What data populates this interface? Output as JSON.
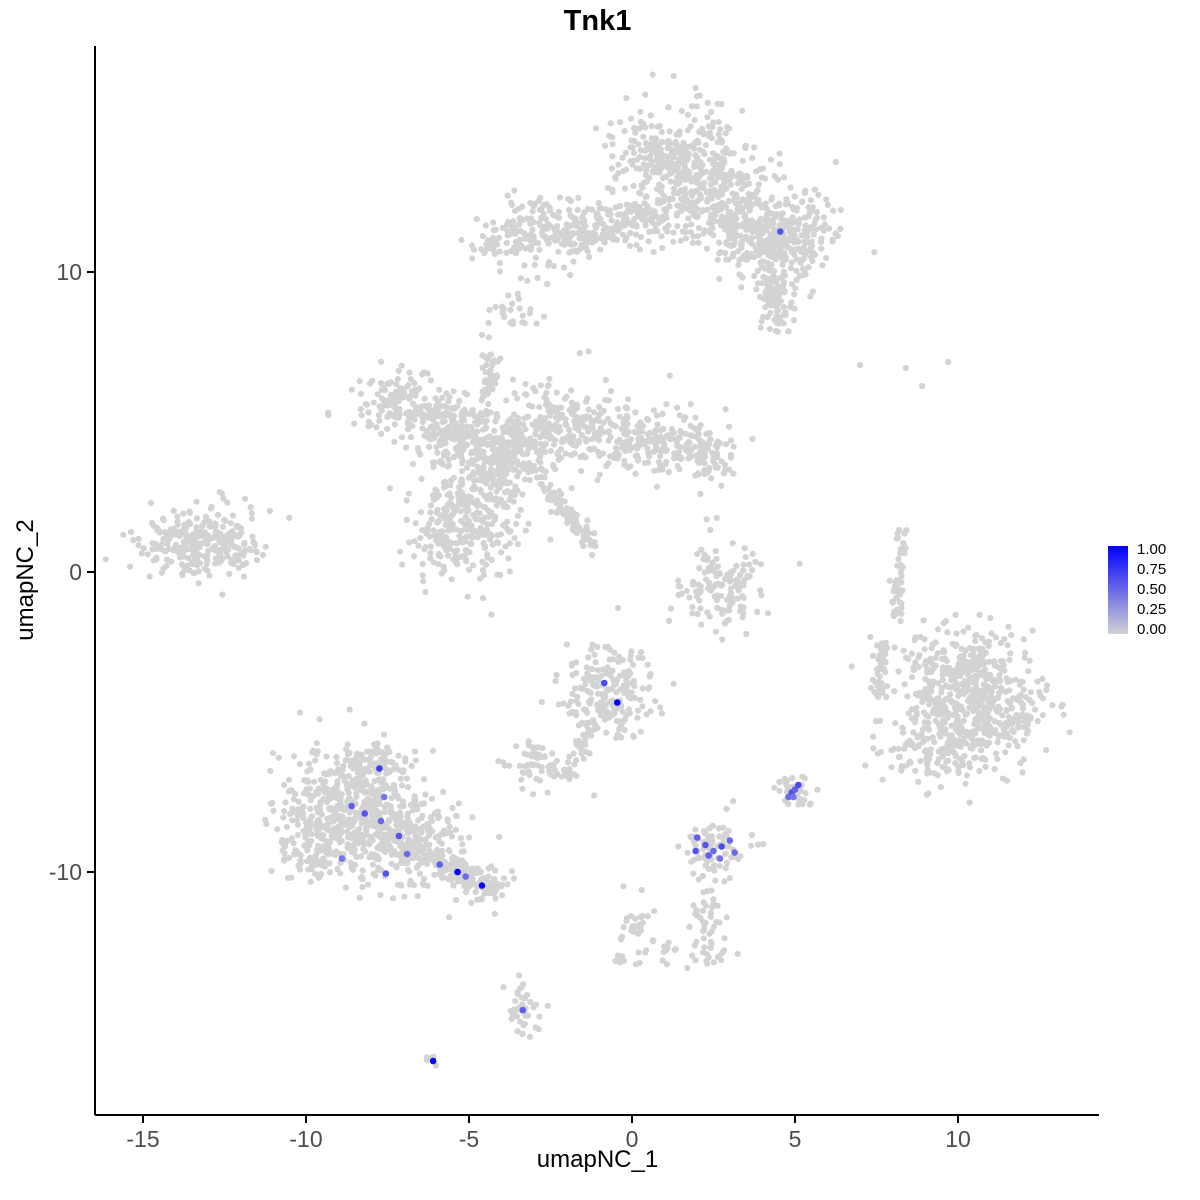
{
  "title": "Tnk1",
  "axes": {
    "x": {
      "label": "umapNC_1",
      "ticks": [
        {
          "v": -15,
          "label": "-15"
        },
        {
          "v": -10,
          "label": "-10"
        },
        {
          "v": -5,
          "label": "-5"
        },
        {
          "v": 0,
          "label": "0"
        },
        {
          "v": 5,
          "label": "5"
        },
        {
          "v": 10,
          "label": "10"
        }
      ],
      "range": [
        -16.5,
        14.3
      ]
    },
    "y": {
      "label": "umapNC_2",
      "ticks": [
        {
          "v": 10,
          "label": "10"
        },
        {
          "v": 0,
          "label": "0"
        },
        {
          "v": -10,
          "label": "-10"
        }
      ],
      "range": [
        -18.1,
        17.5
      ]
    }
  },
  "legend": {
    "labels": [
      "1.00",
      "0.75",
      "0.50",
      "0.25",
      "0.00"
    ],
    "color_high": "#0000FF",
    "color_low": "#D3D3D3"
  },
  "style": {
    "bg_point_color": "#D3D3D3",
    "axis_color": "#000000",
    "tick_label_color": "#4D4D4D",
    "point_radius": 3.1
  },
  "chart_data": {
    "type": "scatter",
    "title": "Tnk1",
    "xlabel": "umapNC_1",
    "ylabel": "umapNC_2",
    "xlim": [
      -16.5,
      14.3
    ],
    "ylim": [
      -18.1,
      17.5
    ],
    "clusters": [
      {
        "cx": 1.5,
        "cy": 13.8,
        "sx": 1.0,
        "sy": 0.85,
        "n": 330
      },
      {
        "cx": 2.6,
        "cy": 12.3,
        "sx": 0.8,
        "sy": 0.8,
        "n": 200
      },
      {
        "cx": 3.6,
        "cy": 11.2,
        "sx": 0.6,
        "sy": 0.55,
        "n": 110
      },
      {
        "cx": 4.9,
        "cy": 11.3,
        "sx": 0.75,
        "sy": 0.7,
        "n": 210
      },
      {
        "cx": 4.5,
        "cy": 9.4,
        "sx": 0.4,
        "sy": 0.6,
        "n": 50
      },
      {
        "cx": -2.9,
        "cy": 11.4,
        "sx": 0.75,
        "sy": 0.55,
        "n": 150
      },
      {
        "cx": -0.8,
        "cy": 11.6,
        "sx": 1.1,
        "sy": 0.45,
        "n": 110
      },
      {
        "cx": -4.4,
        "cy": 10.9,
        "sx": 0.3,
        "sy": 0.25,
        "n": 20
      },
      {
        "cx": -3.7,
        "cy": 8.6,
        "sx": 0.35,
        "sy": 0.3,
        "n": 26
      },
      {
        "cx": -6.8,
        "cy": 5.6,
        "sx": 0.85,
        "sy": 0.5,
        "n": 150
      },
      {
        "cx": -5.6,
        "cy": 4.8,
        "sx": 0.7,
        "sy": 0.5,
        "n": 120
      },
      {
        "cx": -4.2,
        "cy": 3.8,
        "sx": 0.9,
        "sy": 0.85,
        "n": 340
      },
      {
        "cx": -1.8,
        "cy": 4.8,
        "sx": 1.15,
        "sy": 0.65,
        "n": 250
      },
      {
        "cx": 0.8,
        "cy": 4.3,
        "sx": 1.0,
        "sy": 0.55,
        "n": 170
      },
      {
        "cx": 2.3,
        "cy": 3.9,
        "sx": 0.5,
        "sy": 0.4,
        "n": 60
      },
      {
        "cx": -5.2,
        "cy": 1.5,
        "sx": 0.8,
        "sy": 0.85,
        "n": 250
      },
      {
        "cx": -13.2,
        "cy": 1.0,
        "sx": 0.95,
        "sy": 0.55,
        "n": 280
      },
      {
        "cx": 2.8,
        "cy": -0.6,
        "sx": 0.7,
        "sy": 0.7,
        "n": 130
      },
      {
        "cx": 10.0,
        "cy": -3.4,
        "sx": 1.0,
        "sy": 0.8,
        "n": 250
      },
      {
        "cx": 11.2,
        "cy": -4.6,
        "sx": 0.85,
        "sy": 0.85,
        "n": 220
      },
      {
        "cx": 9.5,
        "cy": -5.5,
        "sx": 0.9,
        "sy": 0.75,
        "n": 220
      },
      {
        "cx": -0.6,
        "cy": -4.0,
        "sx": 0.7,
        "sy": 0.75,
        "n": 210
      },
      {
        "cx": -2.9,
        "cy": -6.4,
        "sx": 0.4,
        "sy": 0.35,
        "n": 55
      },
      {
        "cx": -8.6,
        "cy": -7.6,
        "sx": 1.05,
        "sy": 0.85,
        "n": 380
      },
      {
        "cx": -7.2,
        "cy": -9.0,
        "sx": 0.95,
        "sy": 0.75,
        "n": 300
      },
      {
        "cx": -9.6,
        "cy": -9.2,
        "sx": 0.65,
        "sy": 0.55,
        "n": 120
      },
      {
        "cx": -4.35,
        "cy": -10.55,
        "sx": 0.4,
        "sy": 0.3,
        "n": 45
      },
      {
        "cx": -7.8,
        "cy": -6.4,
        "sx": 0.5,
        "sy": 0.35,
        "n": 60
      },
      {
        "cx": 2.5,
        "cy": -9.2,
        "sx": 0.5,
        "sy": 0.45,
        "n": 80
      },
      {
        "cx": 5.0,
        "cy": -7.3,
        "sx": 0.26,
        "sy": 0.3,
        "n": 38
      },
      {
        "cx": 0.1,
        "cy": -11.9,
        "sx": 0.3,
        "sy": 0.45,
        "n": 30
      },
      {
        "cx": 2.3,
        "cy": -11.4,
        "sx": 0.3,
        "sy": 0.45,
        "n": 35
      },
      {
        "cx": 2.5,
        "cy": -12.7,
        "sx": 0.28,
        "sy": 0.25,
        "n": 20
      },
      {
        "cx": 1.05,
        "cy": -12.6,
        "sx": 0.2,
        "sy": 0.2,
        "n": 10
      },
      {
        "cx": -0.4,
        "cy": -13.0,
        "sx": 0.15,
        "sy": 0.15,
        "n": 6
      },
      {
        "cx": -3.3,
        "cy": -14.5,
        "sx": 0.28,
        "sy": 0.45,
        "n": 40
      },
      {
        "cx": -6.1,
        "cy": -16.2,
        "sx": 0.13,
        "sy": 0.13,
        "n": 5
      }
    ],
    "streaks": [
      {
        "x1": -2.7,
        "y1": 2.9,
        "x2": -1.25,
        "y2": 0.85,
        "jitter": 0.13,
        "n": 90
      },
      {
        "x1": -4.35,
        "y1": 5.9,
        "x2": -4.3,
        "y2": 7.3,
        "jitter": 0.12,
        "n": 35
      },
      {
        "x1": -2.1,
        "y1": 11.0,
        "x2": 0.4,
        "y2": 11.8,
        "jitter": 0.3,
        "n": 70
      },
      {
        "x1": 0.3,
        "y1": 11.9,
        "x2": 1.1,
        "y2": 12.4,
        "jitter": 0.3,
        "n": 20
      },
      {
        "x1": 8.3,
        "y1": 1.4,
        "x2": 8.1,
        "y2": -1.4,
        "jitter": 0.1,
        "n": 55
      },
      {
        "x1": 7.7,
        "y1": -2.4,
        "x2": 7.5,
        "y2": -4.2,
        "jitter": 0.15,
        "n": 40
      },
      {
        "x1": -1.3,
        "y1": -5.2,
        "x2": -1.9,
        "y2": -6.8,
        "jitter": 0.15,
        "n": 35
      },
      {
        "x1": -6.3,
        "y1": -9.5,
        "x2": -4.7,
        "y2": -10.3,
        "jitter": 0.25,
        "n": 110
      },
      {
        "x1": 4.3,
        "y1": 10.2,
        "x2": 4.5,
        "y2": 8.0,
        "jitter": 0.25,
        "n": 60
      }
    ],
    "singles": [
      [
        7.0,
        6.9
      ],
      [
        8.4,
        6.8
      ],
      [
        9.7,
        7.0
      ],
      [
        8.9,
        6.2
      ],
      [
        2.4,
        1.4
      ],
      [
        2.0,
        0.6
      ],
      [
        3.2,
        0.2
      ],
      [
        2.1,
        2.6
      ],
      [
        2.6,
        1.8
      ],
      [
        -1.6,
        7.3
      ],
      [
        -0.8,
        6.4
      ],
      [
        0.3,
        -10.6
      ],
      [
        1.7,
        -13.2
      ],
      [
        2.9,
        -7.9
      ],
      [
        -4.6,
        7.9
      ],
      [
        -4.4,
        8.3
      ],
      [
        0.8,
        12.4
      ],
      [
        0.3,
        11.9
      ],
      [
        -2.4,
        10.2
      ],
      [
        -2.9,
        9.8
      ],
      [
        -1.9,
        9.9
      ],
      [
        -2.6,
        9.6
      ]
    ],
    "expressing_cells": [
      {
        "x": 4.55,
        "y": 11.35,
        "value": 0.6
      },
      {
        "x": -0.85,
        "y": -3.7,
        "value": 0.65
      },
      {
        "x": -0.45,
        "y": -4.35,
        "value": 1.0
      },
      {
        "x": -7.75,
        "y": -6.55,
        "value": 0.7
      },
      {
        "x": -7.6,
        "y": -7.5,
        "value": 0.45
      },
      {
        "x": -8.6,
        "y": -7.8,
        "value": 0.55
      },
      {
        "x": -8.2,
        "y": -8.05,
        "value": 0.6
      },
      {
        "x": -7.7,
        "y": -8.3,
        "value": 0.5
      },
      {
        "x": -7.15,
        "y": -8.8,
        "value": 0.6
      },
      {
        "x": -8.9,
        "y": -9.55,
        "value": 0.45
      },
      {
        "x": -7.55,
        "y": -10.05,
        "value": 0.6
      },
      {
        "x": -6.9,
        "y": -9.4,
        "value": 0.5
      },
      {
        "x": -5.9,
        "y": -9.75,
        "value": 0.55
      },
      {
        "x": -5.35,
        "y": -10.0,
        "value": 1.0
      },
      {
        "x": -5.1,
        "y": -10.15,
        "value": 0.5
      },
      {
        "x": -4.6,
        "y": -10.45,
        "value": 0.95
      },
      {
        "x": 2.0,
        "y": -8.85,
        "value": 0.55
      },
      {
        "x": 2.25,
        "y": -9.1,
        "value": 0.6
      },
      {
        "x": 2.5,
        "y": -9.3,
        "value": 0.5
      },
      {
        "x": 2.75,
        "y": -9.15,
        "value": 0.65
      },
      {
        "x": 3.0,
        "y": -8.95,
        "value": 0.5
      },
      {
        "x": 2.35,
        "y": -9.45,
        "value": 0.55
      },
      {
        "x": 2.7,
        "y": -9.55,
        "value": 0.45
      },
      {
        "x": 1.95,
        "y": -9.3,
        "value": 0.6
      },
      {
        "x": 3.15,
        "y": -9.35,
        "value": 0.5
      },
      {
        "x": 4.8,
        "y": -7.5,
        "value": 0.5
      },
      {
        "x": 4.9,
        "y": -7.35,
        "value": 0.6
      },
      {
        "x": 5.0,
        "y": -7.25,
        "value": 0.55
      },
      {
        "x": 5.1,
        "y": -7.1,
        "value": 0.65
      },
      {
        "x": 4.95,
        "y": -7.5,
        "value": 0.45
      },
      {
        "x": -3.35,
        "y": -14.6,
        "value": 0.55
      },
      {
        "x": -6.1,
        "y": -16.3,
        "value": 0.95
      }
    ]
  }
}
